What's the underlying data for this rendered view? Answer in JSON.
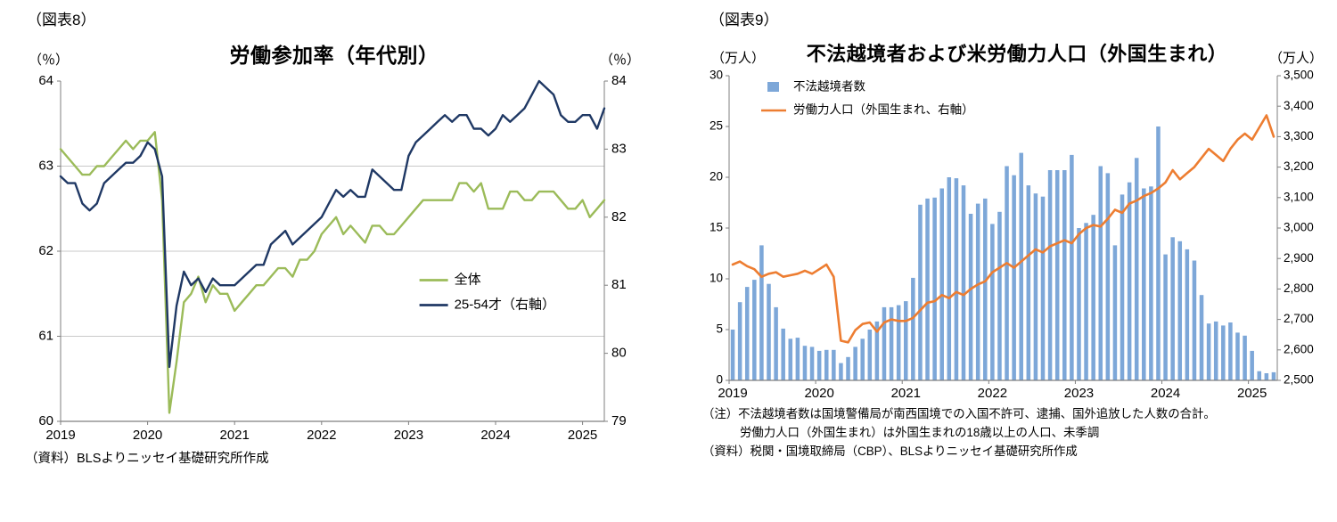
{
  "left_panel": {
    "figure_label": "（図表8）",
    "title": "労働参加率（年代別）",
    "unit_left": "（％）",
    "unit_right": "（％）",
    "source": "（資料）BLSよりニッセイ基礎研究所作成"
  },
  "right_panel": {
    "figure_label": "（図表9）",
    "title": "不法越境者および米労働力人口（外国生まれ）",
    "unit_left": "（万人）",
    "unit_right": "（万人）",
    "notes": [
      "（注）不法越境者数は国境警備局が南西国境での入国不許可、逮捕、国外追放した人数の合計。",
      "労働力人口（外国生まれ）は外国生まれの18歳以上の人口、未季調",
      "（資料）税関・国境取締局（CBP）、BLSよりニッセイ基礎研究所作成"
    ]
  },
  "chart_data": [
    {
      "type": "line",
      "title": "労働参加率（年代別）",
      "x_start": "2019-01",
      "x_frequency": "monthly",
      "x_tick_labels": [
        "2019",
        "2020",
        "2021",
        "2022",
        "2023",
        "2024",
        "2025"
      ],
      "left_axis": {
        "label": "（％）",
        "lim": [
          60,
          64
        ],
        "ticks": [
          60,
          61,
          62,
          63,
          64
        ]
      },
      "right_axis": {
        "label": "（％）",
        "lim": [
          79,
          84
        ],
        "ticks": [
          79,
          80,
          81,
          82,
          83,
          84
        ]
      },
      "gridlines": [
        61,
        62,
        63
      ],
      "legend_position": "inside-right-middle",
      "series": [
        {
          "name": "全体",
          "axis": "left",
          "color": "#9bbb59",
          "values": [
            63.2,
            63.1,
            63.0,
            62.9,
            62.9,
            63.0,
            63.0,
            63.1,
            63.2,
            63.3,
            63.2,
            63.3,
            63.3,
            63.4,
            62.6,
            60.1,
            60.7,
            61.4,
            61.5,
            61.7,
            61.4,
            61.6,
            61.5,
            61.5,
            61.3,
            61.4,
            61.5,
            61.6,
            61.6,
            61.7,
            61.8,
            61.8,
            61.7,
            61.9,
            61.9,
            62.0,
            62.2,
            62.3,
            62.4,
            62.2,
            62.3,
            62.2,
            62.1,
            62.3,
            62.3,
            62.2,
            62.2,
            62.3,
            62.4,
            62.5,
            62.6,
            62.6,
            62.6,
            62.6,
            62.6,
            62.8,
            62.8,
            62.7,
            62.8,
            62.5,
            62.5,
            62.5,
            62.7,
            62.7,
            62.6,
            62.6,
            62.7,
            62.7,
            62.7,
            62.6,
            62.5,
            62.5,
            62.6,
            62.4,
            62.5,
            62.6
          ]
        },
        {
          "name": "25-54才（右軸）",
          "axis": "right",
          "color": "#1f3864",
          "values": [
            82.6,
            82.5,
            82.5,
            82.2,
            82.1,
            82.2,
            82.5,
            82.6,
            82.7,
            82.8,
            82.8,
            82.9,
            83.1,
            83.0,
            82.6,
            79.8,
            80.7,
            81.2,
            81.0,
            81.1,
            80.9,
            81.1,
            81.0,
            81.0,
            81.0,
            81.1,
            81.2,
            81.3,
            81.3,
            81.6,
            81.7,
            81.8,
            81.6,
            81.7,
            81.8,
            81.9,
            82.0,
            82.2,
            82.4,
            82.3,
            82.4,
            82.3,
            82.3,
            82.7,
            82.6,
            82.5,
            82.4,
            82.4,
            82.9,
            83.1,
            83.2,
            83.3,
            83.4,
            83.5,
            83.4,
            83.5,
            83.5,
            83.3,
            83.3,
            83.2,
            83.3,
            83.5,
            83.4,
            83.5,
            83.6,
            83.8,
            84.0,
            83.9,
            83.8,
            83.5,
            83.4,
            83.4,
            83.5,
            83.5,
            83.3,
            83.6
          ]
        }
      ]
    },
    {
      "type": "bar+line",
      "title": "不法越境者および米労働力人口（外国生まれ）",
      "x_start": "2019-01",
      "x_frequency": "monthly",
      "x_tick_labels": [
        "2019",
        "2020",
        "2021",
        "2022",
        "2023",
        "2024",
        "2025"
      ],
      "left_axis": {
        "label": "（万人）",
        "lim": [
          0,
          30
        ],
        "ticks": [
          0,
          5,
          10,
          15,
          20,
          25,
          30
        ]
      },
      "right_axis": {
        "label": "（万人）",
        "lim": [
          2500,
          3500
        ],
        "ticks": [
          2500,
          2600,
          2700,
          2800,
          2900,
          3000,
          3100,
          3200,
          3300,
          3400,
          3500
        ]
      },
      "legend_position": "inside-top-left",
      "bar_series": {
        "name": "不法越境者数",
        "axis": "left",
        "color": "#7da7d8",
        "values": [
          5.0,
          7.7,
          9.2,
          9.9,
          13.3,
          9.5,
          7.2,
          5.1,
          4.1,
          4.2,
          3.4,
          3.3,
          2.9,
          3.0,
          3.0,
          1.7,
          2.3,
          3.3,
          4.1,
          5.0,
          5.8,
          7.2,
          7.2,
          7.4,
          7.8,
          10.1,
          17.3,
          17.9,
          18.0,
          18.9,
          20.0,
          19.9,
          19.2,
          16.4,
          17.4,
          17.9,
          15.4,
          16.6,
          21.1,
          20.2,
          22.4,
          19.2,
          18.4,
          18.1,
          20.7,
          20.7,
          20.7,
          22.2,
          15.0,
          15.5,
          16.3,
          21.1,
          20.4,
          13.3,
          18.3,
          19.5,
          21.9,
          18.9,
          19.1,
          25.0,
          12.4,
          14.1,
          13.7,
          12.9,
          11.8,
          8.4,
          5.6,
          5.8,
          5.4,
          5.7,
          4.7,
          4.4,
          2.9,
          0.9,
          0.7,
          0.8
        ]
      },
      "line_series": {
        "name": "労働力人口（外国生まれ、右軸）",
        "axis": "right",
        "color": "#ed7d31",
        "values": [
          2880,
          2890,
          2875,
          2865,
          2840,
          2850,
          2855,
          2840,
          2845,
          2850,
          2860,
          2850,
          2865,
          2880,
          2840,
          2630,
          2625,
          2665,
          2685,
          2690,
          2660,
          2690,
          2700,
          2695,
          2695,
          2705,
          2730,
          2755,
          2760,
          2780,
          2770,
          2790,
          2780,
          2800,
          2815,
          2825,
          2855,
          2870,
          2885,
          2870,
          2890,
          2910,
          2930,
          2920,
          2940,
          2950,
          2960,
          2950,
          2980,
          3000,
          3010,
          3005,
          3030,
          3060,
          3050,
          3080,
          3090,
          3105,
          3115,
          3130,
          3150,
          3190,
          3160,
          3180,
          3200,
          3230,
          3260,
          3240,
          3220,
          3260,
          3290,
          3310,
          3290,
          3330,
          3370,
          3300
        ]
      }
    }
  ]
}
